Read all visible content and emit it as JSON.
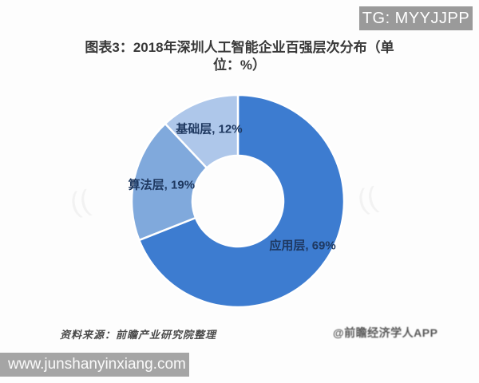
{
  "overlays": {
    "tag_badge": "TG: MYYJJPP",
    "site_url": "www.junshanyinxiang.com"
  },
  "chart": {
    "title_lines": [
      "图表3：2018年深圳人工智能企业百强层次分布（单",
      "位：%）"
    ],
    "source_note": "资料来源：前瞻产业研究院整理",
    "watermark": "@前瞻经济学人APP",
    "ghost_mark": "(("
  },
  "chart_data": {
    "type": "pie",
    "subtype": "donut",
    "title": "图表3：2018年深圳人工智能企业百强层次分布（单位：%）",
    "unit": "%",
    "categories": [
      "应用层",
      "算法层",
      "基础层"
    ],
    "values": [
      69,
      19,
      12
    ],
    "labels": [
      "应用层, 69%",
      "算法层, 19%",
      "基础层, 12%"
    ],
    "colors": [
      "#3d7cd0",
      "#80a9dc",
      "#aec7ea"
    ],
    "label_color": "#1e3860",
    "start_angle_deg": 0,
    "direction": "clockwise",
    "legend": "none",
    "source": "前瞻产业研究院整理"
  }
}
